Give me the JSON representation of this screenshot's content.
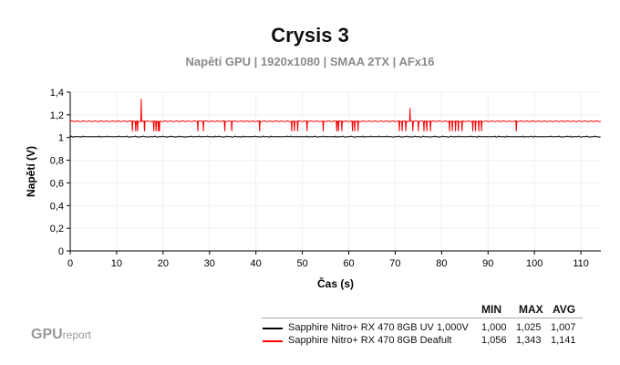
{
  "chart_data": {
    "type": "line",
    "title": "Crysis 3",
    "subtitle": "Napětí GPU | 1920x1080 | SMAA 2TX | AFx16",
    "xlabel": "Čas (s)",
    "ylabel": "Napětí (V)",
    "xlim": [
      0,
      114.3
    ],
    "ylim": [
      0,
      1.4
    ],
    "xticks": [
      "0",
      "10",
      "20",
      "30",
      "40",
      "50",
      "60",
      "70",
      "80",
      "90",
      "100",
      "110"
    ],
    "yticks": [
      "0",
      "0,2",
      "0,4",
      "0,6",
      "0,8",
      "1",
      "1,2",
      "1,4"
    ],
    "grid": true,
    "legend_position": "bottom-right",
    "stats_headers": [
      "MIN",
      "MAX",
      "AVG"
    ],
    "series": [
      {
        "name": "Sapphire Nitro+ RX 470 8GB UV 1,000V",
        "color": "#000000",
        "min": "1,000",
        "max": "1,025",
        "avg": "1,007",
        "baseline": 1.007
      },
      {
        "name": "Sapphire Nitro+ RX 470 8GB Deafult",
        "color": "#ff0000",
        "min": "1,056",
        "max": "1,343",
        "avg": "1,141",
        "baseline": 1.143,
        "dips_s": [
          13.4,
          14.1,
          14.5,
          16,
          18,
          18.5,
          19,
          19.2,
          27.5,
          28.7,
          33.3,
          34.8,
          40.8,
          47.7,
          48.3,
          49,
          51,
          54.5,
          57.4,
          57.8,
          58.5,
          60.8,
          61.3,
          62,
          70.9,
          71.5,
          72.3,
          73.8,
          75,
          76.2,
          76.8,
          77.6,
          81.7,
          82.3,
          83,
          83.6,
          84.4,
          86.7,
          87.3,
          88,
          88.6,
          96.1
        ],
        "dip_value": 1.056,
        "spikes": [
          {
            "x": 15.3,
            "y": 1.343
          },
          {
            "x": 73.2,
            "y": 1.26
          }
        ]
      }
    ]
  },
  "logo": {
    "main": "GPU",
    "sub": "report"
  }
}
